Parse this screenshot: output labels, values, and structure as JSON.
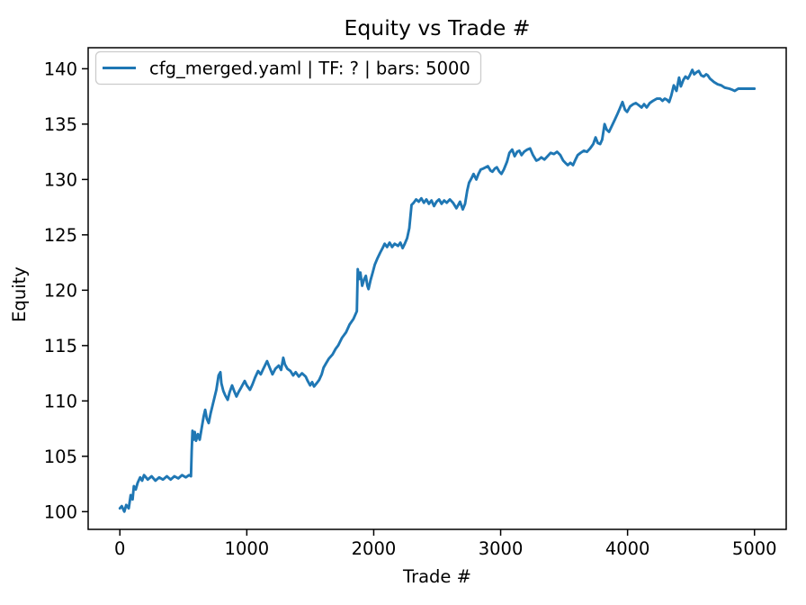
{
  "chart_data": {
    "type": "line",
    "title": "Equity vs Trade #",
    "xlabel": "Trade #",
    "ylabel": "Equity",
    "grid": false,
    "legend": {
      "position": "upper left",
      "entries": [
        {
          "label": "cfg_merged.yaml | TF: ? | bars: 5000",
          "color": "#1f77b4"
        }
      ]
    },
    "xlim": [
      -250,
      5250
    ],
    "ylim": [
      98.4,
      141.9
    ],
    "xticks": [
      0,
      1000,
      2000,
      3000,
      4000,
      5000
    ],
    "yticks": [
      100,
      105,
      110,
      115,
      120,
      125,
      130,
      135,
      140
    ],
    "series": [
      {
        "name": "cfg_merged.yaml | TF: ? | bars: 5000",
        "color": "#1f77b4",
        "points": [
          [
            0,
            100.3
          ],
          [
            15,
            100.5
          ],
          [
            35,
            100.0
          ],
          [
            50,
            100.6
          ],
          [
            70,
            100.3
          ],
          [
            85,
            101.5
          ],
          [
            100,
            101.1
          ],
          [
            110,
            102.3
          ],
          [
            125,
            102.0
          ],
          [
            140,
            102.6
          ],
          [
            160,
            103.1
          ],
          [
            175,
            102.8
          ],
          [
            190,
            103.3
          ],
          [
            220,
            102.9
          ],
          [
            250,
            103.2
          ],
          [
            280,
            102.8
          ],
          [
            310,
            103.1
          ],
          [
            340,
            102.9
          ],
          [
            370,
            103.2
          ],
          [
            400,
            102.9
          ],
          [
            430,
            103.2
          ],
          [
            460,
            103.0
          ],
          [
            490,
            103.3
          ],
          [
            520,
            103.1
          ],
          [
            545,
            103.3
          ],
          [
            560,
            103.2
          ],
          [
            566,
            105.5
          ],
          [
            572,
            107.3
          ],
          [
            580,
            106.5
          ],
          [
            590,
            107.2
          ],
          [
            600,
            106.4
          ],
          [
            615,
            107.0
          ],
          [
            629,
            106.5
          ],
          [
            645,
            107.6
          ],
          [
            660,
            108.6
          ],
          [
            672,
            109.2
          ],
          [
            685,
            108.4
          ],
          [
            700,
            108.0
          ],
          [
            715,
            108.9
          ],
          [
            730,
            109.6
          ],
          [
            745,
            110.3
          ],
          [
            760,
            111.0
          ],
          [
            778,
            112.3
          ],
          [
            792,
            112.6
          ],
          [
            800,
            111.6
          ],
          [
            815,
            110.9
          ],
          [
            830,
            110.5
          ],
          [
            849,
            110.1
          ],
          [
            865,
            110.8
          ],
          [
            884,
            111.4
          ],
          [
            900,
            110.9
          ],
          [
            919,
            110.4
          ],
          [
            935,
            110.8
          ],
          [
            955,
            111.2
          ],
          [
            983,
            111.8
          ],
          [
            1000,
            111.4
          ],
          [
            1025,
            111.0
          ],
          [
            1045,
            111.5
          ],
          [
            1065,
            112.1
          ],
          [
            1089,
            112.7
          ],
          [
            1110,
            112.4
          ],
          [
            1130,
            112.9
          ],
          [
            1160,
            113.6
          ],
          [
            1180,
            113.0
          ],
          [
            1202,
            112.4
          ],
          [
            1225,
            112.9
          ],
          [
            1252,
            113.2
          ],
          [
            1270,
            112.8
          ],
          [
            1287,
            113.9
          ],
          [
            1300,
            113.3
          ],
          [
            1320,
            112.9
          ],
          [
            1344,
            112.7
          ],
          [
            1365,
            112.3
          ],
          [
            1385,
            112.6
          ],
          [
            1410,
            112.2
          ],
          [
            1435,
            112.5
          ],
          [
            1464,
            112.2
          ],
          [
            1480,
            111.8
          ],
          [
            1499,
            111.4
          ],
          [
            1515,
            111.7
          ],
          [
            1530,
            111.3
          ],
          [
            1550,
            111.6
          ],
          [
            1570,
            111.9
          ],
          [
            1590,
            112.4
          ],
          [
            1605,
            113.0
          ],
          [
            1625,
            113.4
          ],
          [
            1645,
            113.8
          ],
          [
            1676,
            114.2
          ],
          [
            1700,
            114.7
          ],
          [
            1720,
            115.0
          ],
          [
            1750,
            115.7
          ],
          [
            1782,
            116.2
          ],
          [
            1810,
            116.9
          ],
          [
            1840,
            117.4
          ],
          [
            1867,
            118.1
          ],
          [
            1874,
            121.9
          ],
          [
            1885,
            121.0
          ],
          [
            1895,
            121.6
          ],
          [
            1909,
            120.4
          ],
          [
            1925,
            121.0
          ],
          [
            1938,
            121.3
          ],
          [
            1950,
            120.4
          ],
          [
            1959,
            120.1
          ],
          [
            1975,
            120.9
          ],
          [
            1990,
            121.5
          ],
          [
            2008,
            122.3
          ],
          [
            2030,
            122.9
          ],
          [
            2051,
            123.4
          ],
          [
            2070,
            123.8
          ],
          [
            2086,
            124.2
          ],
          [
            2105,
            123.9
          ],
          [
            2125,
            124.3
          ],
          [
            2145,
            123.9
          ],
          [
            2165,
            124.2
          ],
          [
            2192,
            124.0
          ],
          [
            2210,
            124.3
          ],
          [
            2228,
            123.8
          ],
          [
            2245,
            124.2
          ],
          [
            2263,
            124.7
          ],
          [
            2280,
            125.6
          ],
          [
            2298,
            127.7
          ],
          [
            2315,
            127.9
          ],
          [
            2334,
            128.2
          ],
          [
            2355,
            128.0
          ],
          [
            2375,
            128.3
          ],
          [
            2395,
            127.9
          ],
          [
            2415,
            128.2
          ],
          [
            2435,
            127.8
          ],
          [
            2455,
            128.1
          ],
          [
            2475,
            127.6
          ],
          [
            2495,
            128.0
          ],
          [
            2515,
            128.2
          ],
          [
            2535,
            127.8
          ],
          [
            2555,
            128.1
          ],
          [
            2575,
            127.9
          ],
          [
            2600,
            128.2
          ],
          [
            2625,
            127.9
          ],
          [
            2652,
            127.4
          ],
          [
            2680,
            128.0
          ],
          [
            2702,
            127.3
          ],
          [
            2720,
            127.8
          ],
          [
            2737,
            129.0
          ],
          [
            2751,
            129.7
          ],
          [
            2770,
            130.1
          ],
          [
            2786,
            130.5
          ],
          [
            2808,
            130.0
          ],
          [
            2825,
            130.5
          ],
          [
            2843,
            130.9
          ],
          [
            2865,
            131.0
          ],
          [
            2900,
            131.2
          ],
          [
            2920,
            130.8
          ],
          [
            2935,
            130.7
          ],
          [
            2955,
            131.0
          ],
          [
            2970,
            131.1
          ],
          [
            2990,
            130.7
          ],
          [
            3006,
            130.5
          ],
          [
            3025,
            130.9
          ],
          [
            3050,
            131.6
          ],
          [
            3069,
            132.4
          ],
          [
            3091,
            132.7
          ],
          [
            3110,
            132.1
          ],
          [
            3130,
            132.5
          ],
          [
            3147,
            132.6
          ],
          [
            3165,
            132.2
          ],
          [
            3185,
            132.5
          ],
          [
            3210,
            132.7
          ],
          [
            3232,
            132.8
          ],
          [
            3255,
            132.2
          ],
          [
            3281,
            131.7
          ],
          [
            3300,
            131.8
          ],
          [
            3320,
            132.0
          ],
          [
            3345,
            131.8
          ],
          [
            3370,
            132.1
          ],
          [
            3394,
            132.4
          ],
          [
            3420,
            132.3
          ],
          [
            3445,
            132.5
          ],
          [
            3470,
            132.2
          ],
          [
            3493,
            131.7
          ],
          [
            3510,
            131.5
          ],
          [
            3529,
            131.3
          ],
          [
            3550,
            131.5
          ],
          [
            3570,
            131.3
          ],
          [
            3590,
            131.8
          ],
          [
            3607,
            132.2
          ],
          [
            3630,
            132.4
          ],
          [
            3656,
            132.6
          ],
          [
            3680,
            132.5
          ],
          [
            3705,
            132.8
          ],
          [
            3730,
            133.2
          ],
          [
            3748,
            133.8
          ],
          [
            3765,
            133.3
          ],
          [
            3784,
            133.2
          ],
          [
            3800,
            133.6
          ],
          [
            3819,
            135.0
          ],
          [
            3835,
            134.5
          ],
          [
            3854,
            134.3
          ],
          [
            3875,
            134.8
          ],
          [
            3900,
            135.4
          ],
          [
            3920,
            135.9
          ],
          [
            3939,
            136.4
          ],
          [
            3960,
            137.0
          ],
          [
            3980,
            136.3
          ],
          [
            3996,
            136.1
          ],
          [
            4020,
            136.6
          ],
          [
            4045,
            136.8
          ],
          [
            4066,
            136.9
          ],
          [
            4090,
            136.7
          ],
          [
            4110,
            136.5
          ],
          [
            4130,
            136.8
          ],
          [
            4151,
            136.5
          ],
          [
            4175,
            136.9
          ],
          [
            4200,
            137.1
          ],
          [
            4230,
            137.3
          ],
          [
            4257,
            137.3
          ],
          [
            4275,
            137.1
          ],
          [
            4293,
            137.3
          ],
          [
            4310,
            137.2
          ],
          [
            4328,
            137.0
          ],
          [
            4345,
            137.6
          ],
          [
            4364,
            138.5
          ],
          [
            4385,
            138.0
          ],
          [
            4406,
            139.2
          ],
          [
            4420,
            138.4
          ],
          [
            4440,
            139.0
          ],
          [
            4456,
            139.3
          ],
          [
            4475,
            139.1
          ],
          [
            4490,
            139.4
          ],
          [
            4510,
            139.9
          ],
          [
            4525,
            139.5
          ],
          [
            4545,
            139.7
          ],
          [
            4561,
            139.8
          ],
          [
            4580,
            139.4
          ],
          [
            4600,
            139.3
          ],
          [
            4620,
            139.5
          ],
          [
            4632,
            139.4
          ],
          [
            4650,
            139.1
          ],
          [
            4681,
            138.8
          ],
          [
            4710,
            138.6
          ],
          [
            4738,
            138.5
          ],
          [
            4765,
            138.3
          ],
          [
            4802,
            138.2
          ],
          [
            4825,
            138.1
          ],
          [
            4844,
            138.0
          ],
          [
            4872,
            138.2
          ],
          [
            4900,
            138.2
          ],
          [
            4950,
            138.2
          ],
          [
            5000,
            138.2
          ]
        ]
      }
    ]
  }
}
